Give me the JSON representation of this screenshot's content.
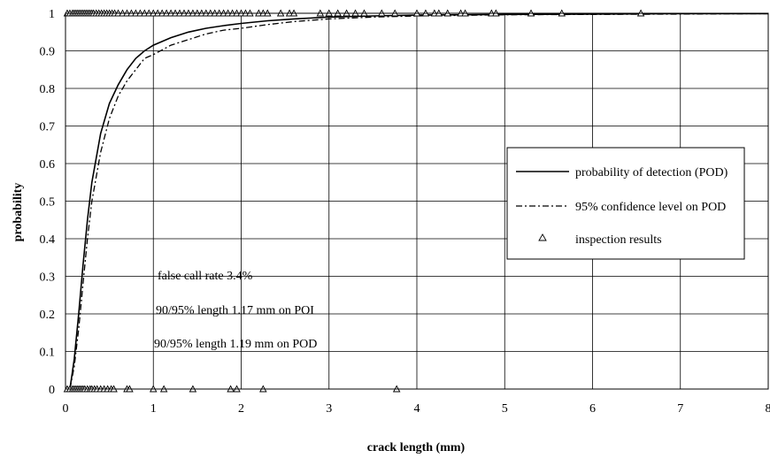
{
  "chart_data": {
    "type": "line",
    "xlabel": "crack length (mm)",
    "ylabel": "probability",
    "xlim": [
      0,
      8
    ],
    "ylim": [
      0,
      1
    ],
    "x_ticks": [
      "0",
      "1",
      "2",
      "3",
      "4",
      "5",
      "6",
      "7",
      "8"
    ],
    "y_ticks": [
      "0",
      "0.1",
      "0.2",
      "0.3",
      "0.4",
      "0.5",
      "0.6",
      "0.7",
      "0.8",
      "0.9",
      "1"
    ],
    "grid": true,
    "legend_position": "right",
    "legend": [
      "probability of detection (POD)",
      "95% confidence level on POD",
      "inspection results"
    ],
    "annotations": [
      "false call rate 3.4%",
      "90/95% length 1.17 mm on POI",
      "90/95% length 1.19 mm on POD"
    ],
    "series": [
      {
        "name": "probability of detection (POD)",
        "style": "solid",
        "x": [
          0.05,
          0.1,
          0.15,
          0.2,
          0.25,
          0.3,
          0.4,
          0.5,
          0.6,
          0.7,
          0.8,
          0.9,
          1.0,
          1.2,
          1.4,
          1.6,
          1.8,
          2.0,
          2.3,
          2.6,
          3.0,
          3.5,
          4.0,
          5.0,
          6.0,
          7.0,
          8.0
        ],
        "y": [
          0.0,
          0.08,
          0.2,
          0.33,
          0.45,
          0.55,
          0.68,
          0.76,
          0.81,
          0.85,
          0.88,
          0.9,
          0.915,
          0.935,
          0.95,
          0.96,
          0.967,
          0.973,
          0.98,
          0.985,
          0.99,
          0.993,
          0.995,
          0.997,
          0.998,
          0.999,
          0.999
        ]
      },
      {
        "name": "95% confidence level on POD",
        "style": "dash-dot",
        "x": [
          0.05,
          0.1,
          0.15,
          0.2,
          0.25,
          0.3,
          0.4,
          0.5,
          0.6,
          0.7,
          0.8,
          0.9,
          1.0,
          1.2,
          1.4,
          1.6,
          1.8,
          2.0,
          2.3,
          2.6,
          3.0,
          3.5,
          4.0,
          5.0,
          6.0,
          7.0,
          8.0
        ],
        "y": [
          0.0,
          0.06,
          0.16,
          0.28,
          0.4,
          0.5,
          0.63,
          0.72,
          0.78,
          0.82,
          0.85,
          0.88,
          0.89,
          0.915,
          0.93,
          0.945,
          0.955,
          0.96,
          0.97,
          0.978,
          0.985,
          0.99,
          0.993,
          0.996,
          0.997,
          0.998,
          0.999
        ]
      },
      {
        "name": "inspection results",
        "style": "triangle-markers",
        "x": [
          0.02,
          0.05,
          0.08,
          0.1,
          0.12,
          0.14,
          0.16,
          0.18,
          0.2,
          0.22,
          0.24,
          0.26,
          0.28,
          0.3,
          0.32,
          0.35,
          0.38,
          0.41,
          0.44,
          0.47,
          0.5,
          0.53,
          0.56,
          0.6,
          0.65,
          0.7,
          0.75,
          0.8,
          0.85,
          0.9,
          0.95,
          1.0,
          1.05,
          1.1,
          1.15,
          1.2,
          1.25,
          1.3,
          1.35,
          1.4,
          1.45,
          1.5,
          1.55,
          1.6,
          1.65,
          1.7,
          1.75,
          1.8,
          1.85,
          1.9,
          1.95,
          2.0,
          2.05,
          2.1,
          2.2,
          2.25,
          2.3,
          2.45,
          2.55,
          2.6,
          2.9,
          3.0,
          3.1,
          3.2,
          3.3,
          3.4,
          3.6,
          3.75,
          4.0,
          4.1,
          4.2,
          4.25,
          4.35,
          4.5,
          4.55,
          4.85,
          4.9,
          5.3,
          5.65,
          6.55,
          0.02,
          0.05,
          0.08,
          0.1,
          0.12,
          0.14,
          0.16,
          0.18,
          0.2,
          0.22,
          0.25,
          0.28,
          0.3,
          0.33,
          0.36,
          0.4,
          0.44,
          0.48,
          0.52,
          0.55,
          0.7,
          0.73,
          1.0,
          1.12,
          1.45,
          1.88,
          1.95,
          2.25,
          3.77
        ],
        "y": [
          1,
          1,
          1,
          1,
          1,
          1,
          1,
          1,
          1,
          1,
          1,
          1,
          1,
          1,
          1,
          1,
          1,
          1,
          1,
          1,
          1,
          1,
          1,
          1,
          1,
          1,
          1,
          1,
          1,
          1,
          1,
          1,
          1,
          1,
          1,
          1,
          1,
          1,
          1,
          1,
          1,
          1,
          1,
          1,
          1,
          1,
          1,
          1,
          1,
          1,
          1,
          1,
          1,
          1,
          1,
          1,
          1,
          1,
          1,
          1,
          1,
          1,
          1,
          1,
          1,
          1,
          1,
          1,
          1,
          1,
          1,
          1,
          1,
          1,
          1,
          1,
          1,
          1,
          1,
          1,
          0,
          0,
          0,
          0,
          0,
          0,
          0,
          0,
          0,
          0,
          0,
          0,
          0,
          0,
          0,
          0,
          0,
          0,
          0,
          0,
          0,
          0,
          0,
          0,
          0,
          0,
          0,
          0,
          0
        ]
      }
    ]
  }
}
